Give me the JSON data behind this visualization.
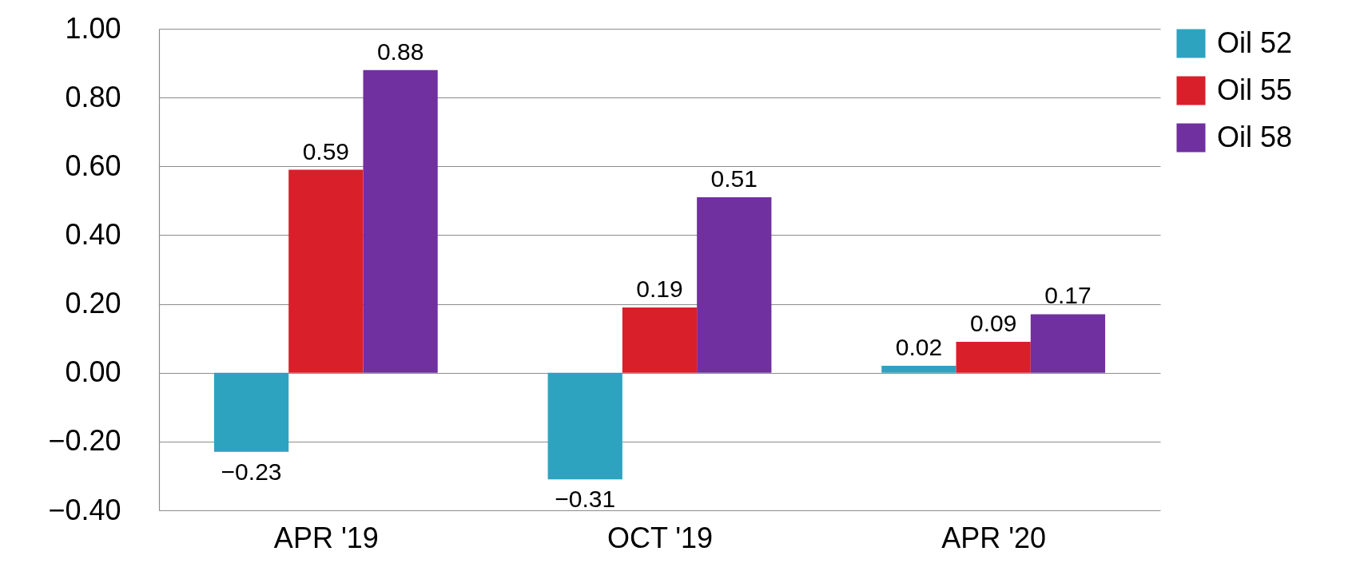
{
  "chart_data": {
    "type": "bar",
    "categories": [
      "APR '19",
      "OCT '19",
      "APR '20"
    ],
    "series": [
      {
        "name": "Oil 52",
        "color": "#2ea3c0",
        "values": [
          -0.23,
          -0.31,
          0.02
        ],
        "value_labels": [
          "−0.23",
          "−0.31",
          "0.02"
        ]
      },
      {
        "name": "Oil 55",
        "color": "#d9202a",
        "values": [
          0.59,
          0.19,
          0.09
        ],
        "value_labels": [
          "0.59",
          "0.19",
          "0.09"
        ]
      },
      {
        "name": "Oil 58",
        "color": "#7030a0",
        "values": [
          0.88,
          0.51,
          0.17
        ],
        "value_labels": [
          "0.88",
          "0.51",
          "0.17"
        ]
      }
    ],
    "ylim": [
      -0.4,
      1.0
    ],
    "yticks": [
      {
        "value": -0.4,
        "label": "−0.40"
      },
      {
        "value": -0.2,
        "label": "−0.20"
      },
      {
        "value": 0,
        "label": "0.00"
      },
      {
        "value": 0.2,
        "label": "0.20"
      },
      {
        "value": 0.4,
        "label": "0.40"
      },
      {
        "value": 0.6,
        "label": "0.60"
      },
      {
        "value": 0.8,
        "label": "0.80"
      },
      {
        "value": 1.0,
        "label": "1.00"
      }
    ],
    "grid": "y",
    "legend": "right"
  }
}
